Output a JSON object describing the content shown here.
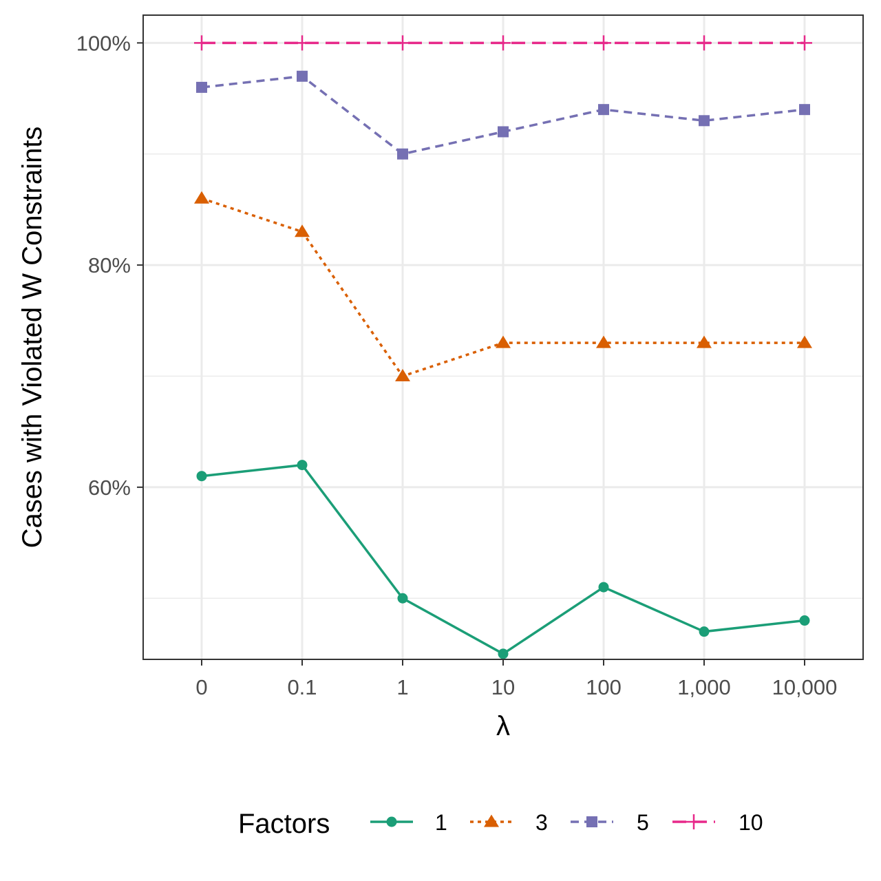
{
  "chart_data": {
    "type": "line",
    "title": "",
    "xlabel": "λ",
    "ylabel": "Cases with Violated W Constraints",
    "categories": [
      "0",
      "0.1",
      "1",
      "10",
      "100",
      "1,000",
      "10,000"
    ],
    "x": [
      0,
      0.1,
      1,
      10,
      100,
      1000,
      10000
    ],
    "ylim": [
      44.5,
      102.5
    ],
    "yticks": [
      60,
      80,
      100
    ],
    "ytick_labels": [
      "60%",
      "80%",
      "100%"
    ],
    "grid": true,
    "legend": {
      "title": "Factors",
      "position": "bottom"
    },
    "series": [
      {
        "name": "1",
        "color": "#1b9e77",
        "linestyle": "solid",
        "marker": "circle",
        "values": [
          61,
          62,
          50,
          45,
          51,
          47,
          48
        ]
      },
      {
        "name": "3",
        "color": "#d95f02",
        "linestyle": "dotted",
        "marker": "triangle",
        "values": [
          86,
          83,
          70,
          73,
          73,
          73,
          73
        ]
      },
      {
        "name": "5",
        "color": "#7570b3",
        "linestyle": "dashed",
        "marker": "square",
        "values": [
          96,
          97,
          90,
          92,
          94,
          93,
          94
        ]
      },
      {
        "name": "10",
        "color": "#e7298a",
        "linestyle": "longdash",
        "marker": "plus",
        "values": [
          100,
          100,
          100,
          100,
          100,
          100,
          100
        ]
      }
    ]
  }
}
